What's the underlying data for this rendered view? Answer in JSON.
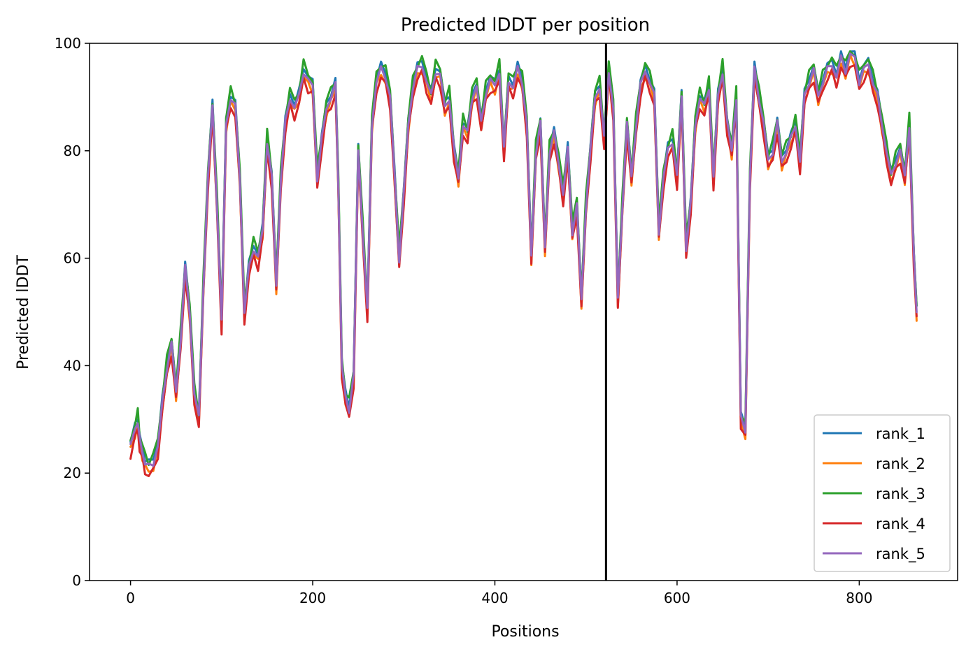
{
  "chart_data": {
    "type": "line",
    "title": "Predicted lDDT per position",
    "xlabel": "Positions",
    "ylabel": "Predicted lDDT",
    "xlim": [
      -45,
      908
    ],
    "ylim": [
      0,
      100
    ],
    "xticks": [
      0,
      200,
      400,
      600,
      800
    ],
    "yticks": [
      0,
      20,
      40,
      60,
      80,
      100
    ],
    "grid": false,
    "legend_position": "bottom-right",
    "vline_x": 522,
    "x": [
      0,
      5,
      8,
      10,
      13,
      16,
      20,
      25,
      30,
      35,
      40,
      45,
      50,
      55,
      60,
      65,
      70,
      75,
      80,
      85,
      90,
      95,
      100,
      105,
      110,
      115,
      120,
      125,
      130,
      135,
      140,
      145,
      150,
      155,
      160,
      165,
      170,
      175,
      180,
      185,
      190,
      195,
      200,
      205,
      210,
      215,
      220,
      225,
      228,
      232,
      236,
      240,
      245,
      250,
      255,
      260,
      265,
      270,
      275,
      280,
      285,
      290,
      295,
      300,
      305,
      310,
      315,
      320,
      325,
      330,
      335,
      340,
      345,
      350,
      355,
      360,
      365,
      370,
      375,
      380,
      385,
      390,
      395,
      400,
      405,
      410,
      415,
      420,
      425,
      430,
      435,
      440,
      445,
      450,
      455,
      460,
      465,
      470,
      475,
      480,
      485,
      490,
      495,
      500,
      505,
      510,
      515,
      520,
      525,
      530,
      535,
      540,
      545,
      550,
      555,
      560,
      565,
      570,
      575,
      580,
      585,
      590,
      595,
      600,
      605,
      610,
      615,
      620,
      625,
      630,
      635,
      640,
      645,
      650,
      655,
      660,
      665,
      670,
      675,
      680,
      685,
      690,
      695,
      700,
      705,
      710,
      715,
      720,
      725,
      730,
      735,
      740,
      745,
      750,
      755,
      760,
      765,
      770,
      775,
      780,
      785,
      790,
      795,
      800,
      805,
      810,
      815,
      820,
      825,
      830,
      835,
      840,
      845,
      850,
      855,
      860,
      863
    ],
    "series": [
      {
        "name": "rank_1",
        "color": "#1f77b4",
        "offset": 0.8
      },
      {
        "name": "rank_2",
        "color": "#ff7f0e",
        "offset": -0.9
      },
      {
        "name": "rank_3",
        "color": "#2ca02c",
        "offset": 1.3
      },
      {
        "name": "rank_4",
        "color": "#d62728",
        "offset": -1.6
      },
      {
        "name": "rank_5",
        "color": "#9467bd",
        "offset": 0.0
      }
    ],
    "base_values": [
      25,
      28,
      30,
      26,
      24,
      22,
      21,
      22,
      25,
      33,
      40,
      44,
      35,
      45,
      58,
      50,
      35,
      30,
      55,
      75,
      88,
      70,
      48,
      85,
      90,
      88,
      75,
      50,
      58,
      62,
      60,
      65,
      82,
      75,
      55,
      75,
      85,
      90,
      88,
      90,
      95,
      93,
      92,
      75,
      82,
      88,
      90,
      92,
      75,
      40,
      34,
      32,
      38,
      80,
      65,
      50,
      85,
      93,
      95,
      94,
      90,
      75,
      60,
      72,
      85,
      92,
      95,
      96,
      93,
      90,
      95,
      94,
      88,
      90,
      80,
      75,
      85,
      83,
      90,
      92,
      85,
      91,
      93,
      92,
      95,
      80,
      93,
      92,
      95,
      93,
      85,
      60,
      80,
      85,
      62,
      80,
      83,
      78,
      72,
      80,
      65,
      70,
      52,
      70,
      80,
      90,
      92,
      82,
      95,
      88,
      52,
      70,
      85,
      75,
      85,
      92,
      95,
      93,
      90,
      65,
      75,
      80,
      82,
      75,
      90,
      62,
      70,
      85,
      90,
      88,
      92,
      75,
      90,
      95,
      85,
      80,
      90,
      30,
      28,
      75,
      95,
      90,
      85,
      78,
      80,
      85,
      78,
      80,
      82,
      85,
      78,
      90,
      93,
      95,
      90,
      93,
      95,
      96,
      94,
      97,
      95,
      98,
      97,
      93,
      95,
      96,
      93,
      90,
      85,
      80,
      75,
      78,
      80,
      75,
      85,
      60,
      50
    ]
  }
}
